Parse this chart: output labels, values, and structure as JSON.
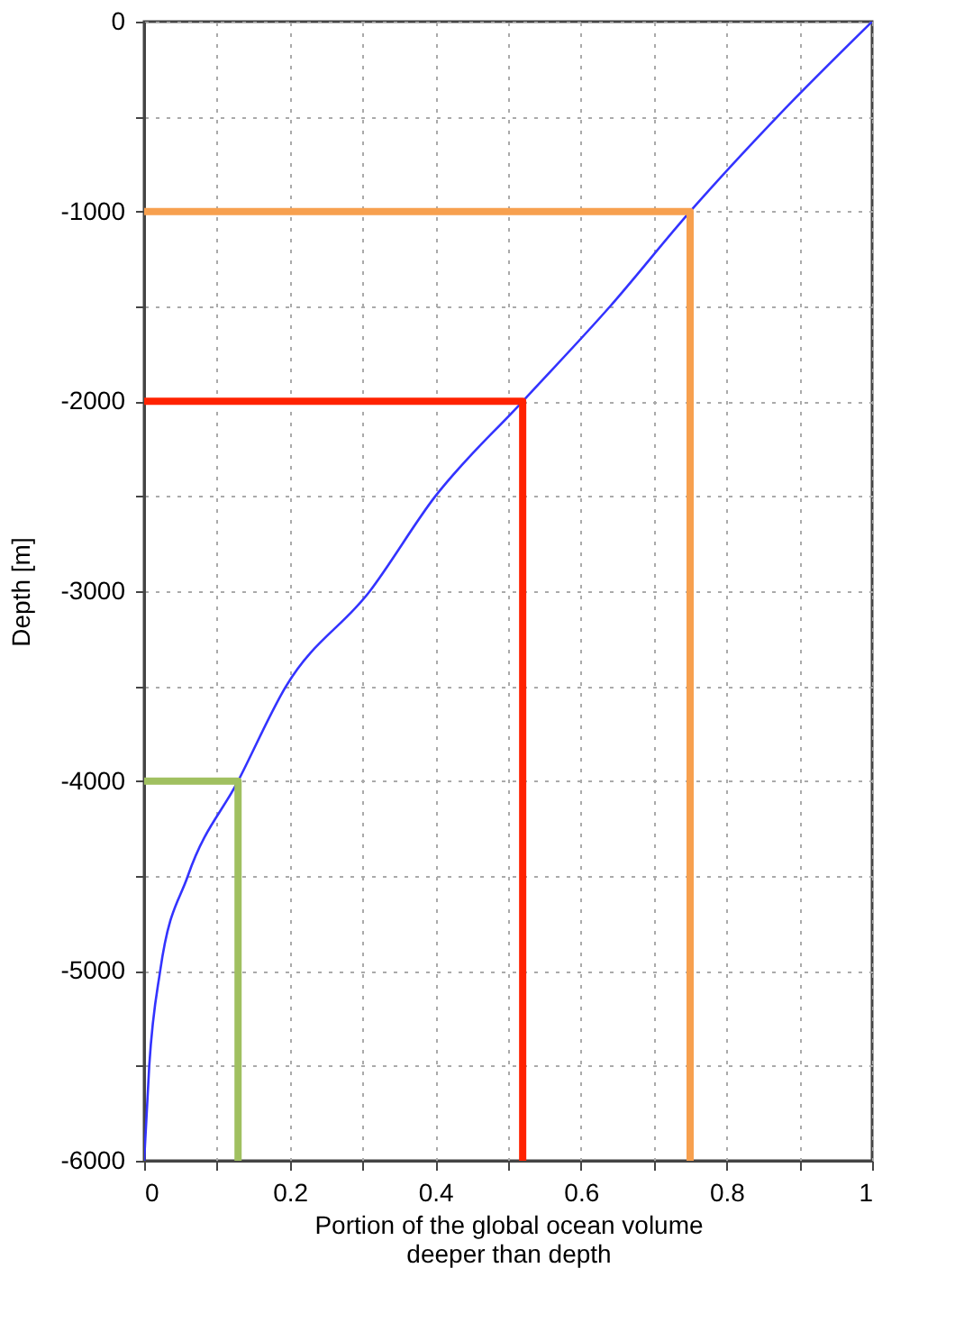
{
  "chart_data": {
    "type": "line",
    "xlabel": "Portion of the global ocean volume\ndeeper than depth",
    "ylabel": "Depth [m]",
    "xlim": [
      0,
      1
    ],
    "ylim": [
      -6000,
      0
    ],
    "xticks": [
      0,
      {
        "value": 0.1,
        "label": null
      },
      0.2,
      {
        "value": 0.3,
        "label": null
      },
      0.4,
      {
        "value": 0.5,
        "label": null
      },
      0.6,
      {
        "value": 0.7,
        "label": null
      },
      0.8,
      {
        "value": 0.9,
        "label": null
      },
      1
    ],
    "yticks": [
      -6000,
      {
        "value": -5500,
        "label": null
      },
      -5000,
      {
        "value": -4500,
        "label": null
      },
      -4000,
      {
        "value": -3500,
        "label": null
      },
      -3000,
      {
        "value": -2500,
        "label": null
      },
      -2000,
      {
        "value": -1500,
        "label": null
      },
      -1000,
      {
        "value": -500,
        "label": null
      },
      0
    ],
    "grid": true,
    "marker": "none",
    "line_style": "solid",
    "series": [
      {
        "color": "#3333ff",
        "x": [
          0,
          0.007,
          0.022,
          0.06,
          0.129,
          0.195,
          0.31,
          0.4,
          0.52,
          0.64,
          0.75,
          0.87,
          1
        ],
        "values": [
          -6000,
          -5500,
          -5000,
          -4500,
          -4000,
          -3500,
          -3000,
          -2500,
          -2000,
          -1500,
          -1000,
          -500,
          0
        ]
      },
      {
        "color": "#f7a04f",
        "x": [
          0,
          0.75,
          0.75
        ],
        "values": [
          -1000,
          -1000,
          -6000
        ]
      },
      {
        "color": "#ff2200",
        "x": [
          0,
          0.52,
          0.52
        ],
        "values": [
          -2000,
          -2000,
          -6000
        ]
      },
      {
        "color": "#a0c060",
        "x": [
          0,
          0.129,
          0.129
        ],
        "values": [
          -4000,
          -4000,
          -6000
        ]
      }
    ]
  }
}
